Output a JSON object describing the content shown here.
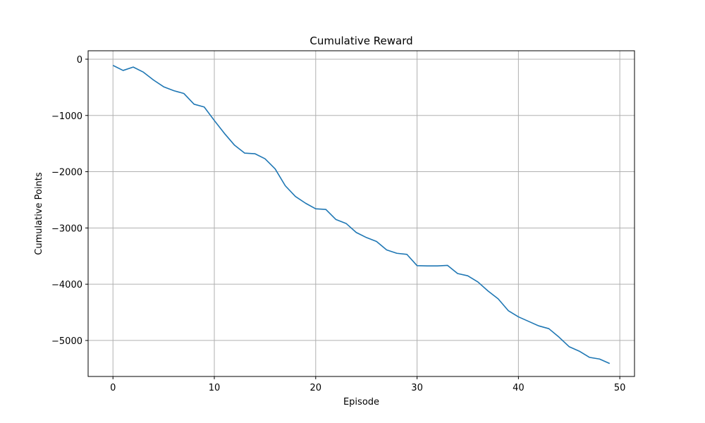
{
  "chart_data": {
    "type": "line",
    "title": "Cumulative Reward",
    "xlabel": "Episode",
    "ylabel": "Cumulative Points",
    "xlim": [
      -2.45,
      51.45
    ],
    "ylim": [
      -5640,
      150
    ],
    "xticks": [
      0,
      10,
      20,
      30,
      40,
      50
    ],
    "yticks": [
      0,
      -1000,
      -2000,
      -3000,
      -4000,
      -5000
    ],
    "xtick_labels": [
      "0",
      "10",
      "20",
      "30",
      "40",
      "50"
    ],
    "ytick_labels": [
      "0",
      "−1000",
      "−2000",
      "−3000",
      "−4000",
      "−5000"
    ],
    "grid": true,
    "line_color": "#1f77b4",
    "grid_color": "#b0b0b0",
    "series": [
      {
        "x": [
          0,
          1,
          2,
          3,
          4,
          5,
          6,
          7,
          8,
          9,
          10,
          11,
          12,
          13,
          14,
          15,
          16,
          17,
          18,
          19,
          20,
          21,
          22,
          23,
          24,
          25,
          26,
          27,
          28,
          29,
          30,
          31,
          32,
          33,
          34,
          35,
          36,
          37,
          38,
          39,
          40,
          41,
          42,
          43,
          44,
          45,
          46,
          47,
          48,
          49
        ],
        "values": [
          -110,
          -200,
          -140,
          -230,
          -370,
          -490,
          -560,
          -610,
          -800,
          -850,
          -1090,
          -1320,
          -1530,
          -1670,
          -1680,
          -1770,
          -1950,
          -2250,
          -2440,
          -2560,
          -2660,
          -2670,
          -2850,
          -2920,
          -3080,
          -3170,
          -3240,
          -3390,
          -3450,
          -3470,
          -3670,
          -3675,
          -3675,
          -3665,
          -3810,
          -3850,
          -3960,
          -4120,
          -4260,
          -4470,
          -4580,
          -4660,
          -4740,
          -4790,
          -4940,
          -5110,
          -5190,
          -5300,
          -5330,
          -5410
        ]
      }
    ]
  }
}
